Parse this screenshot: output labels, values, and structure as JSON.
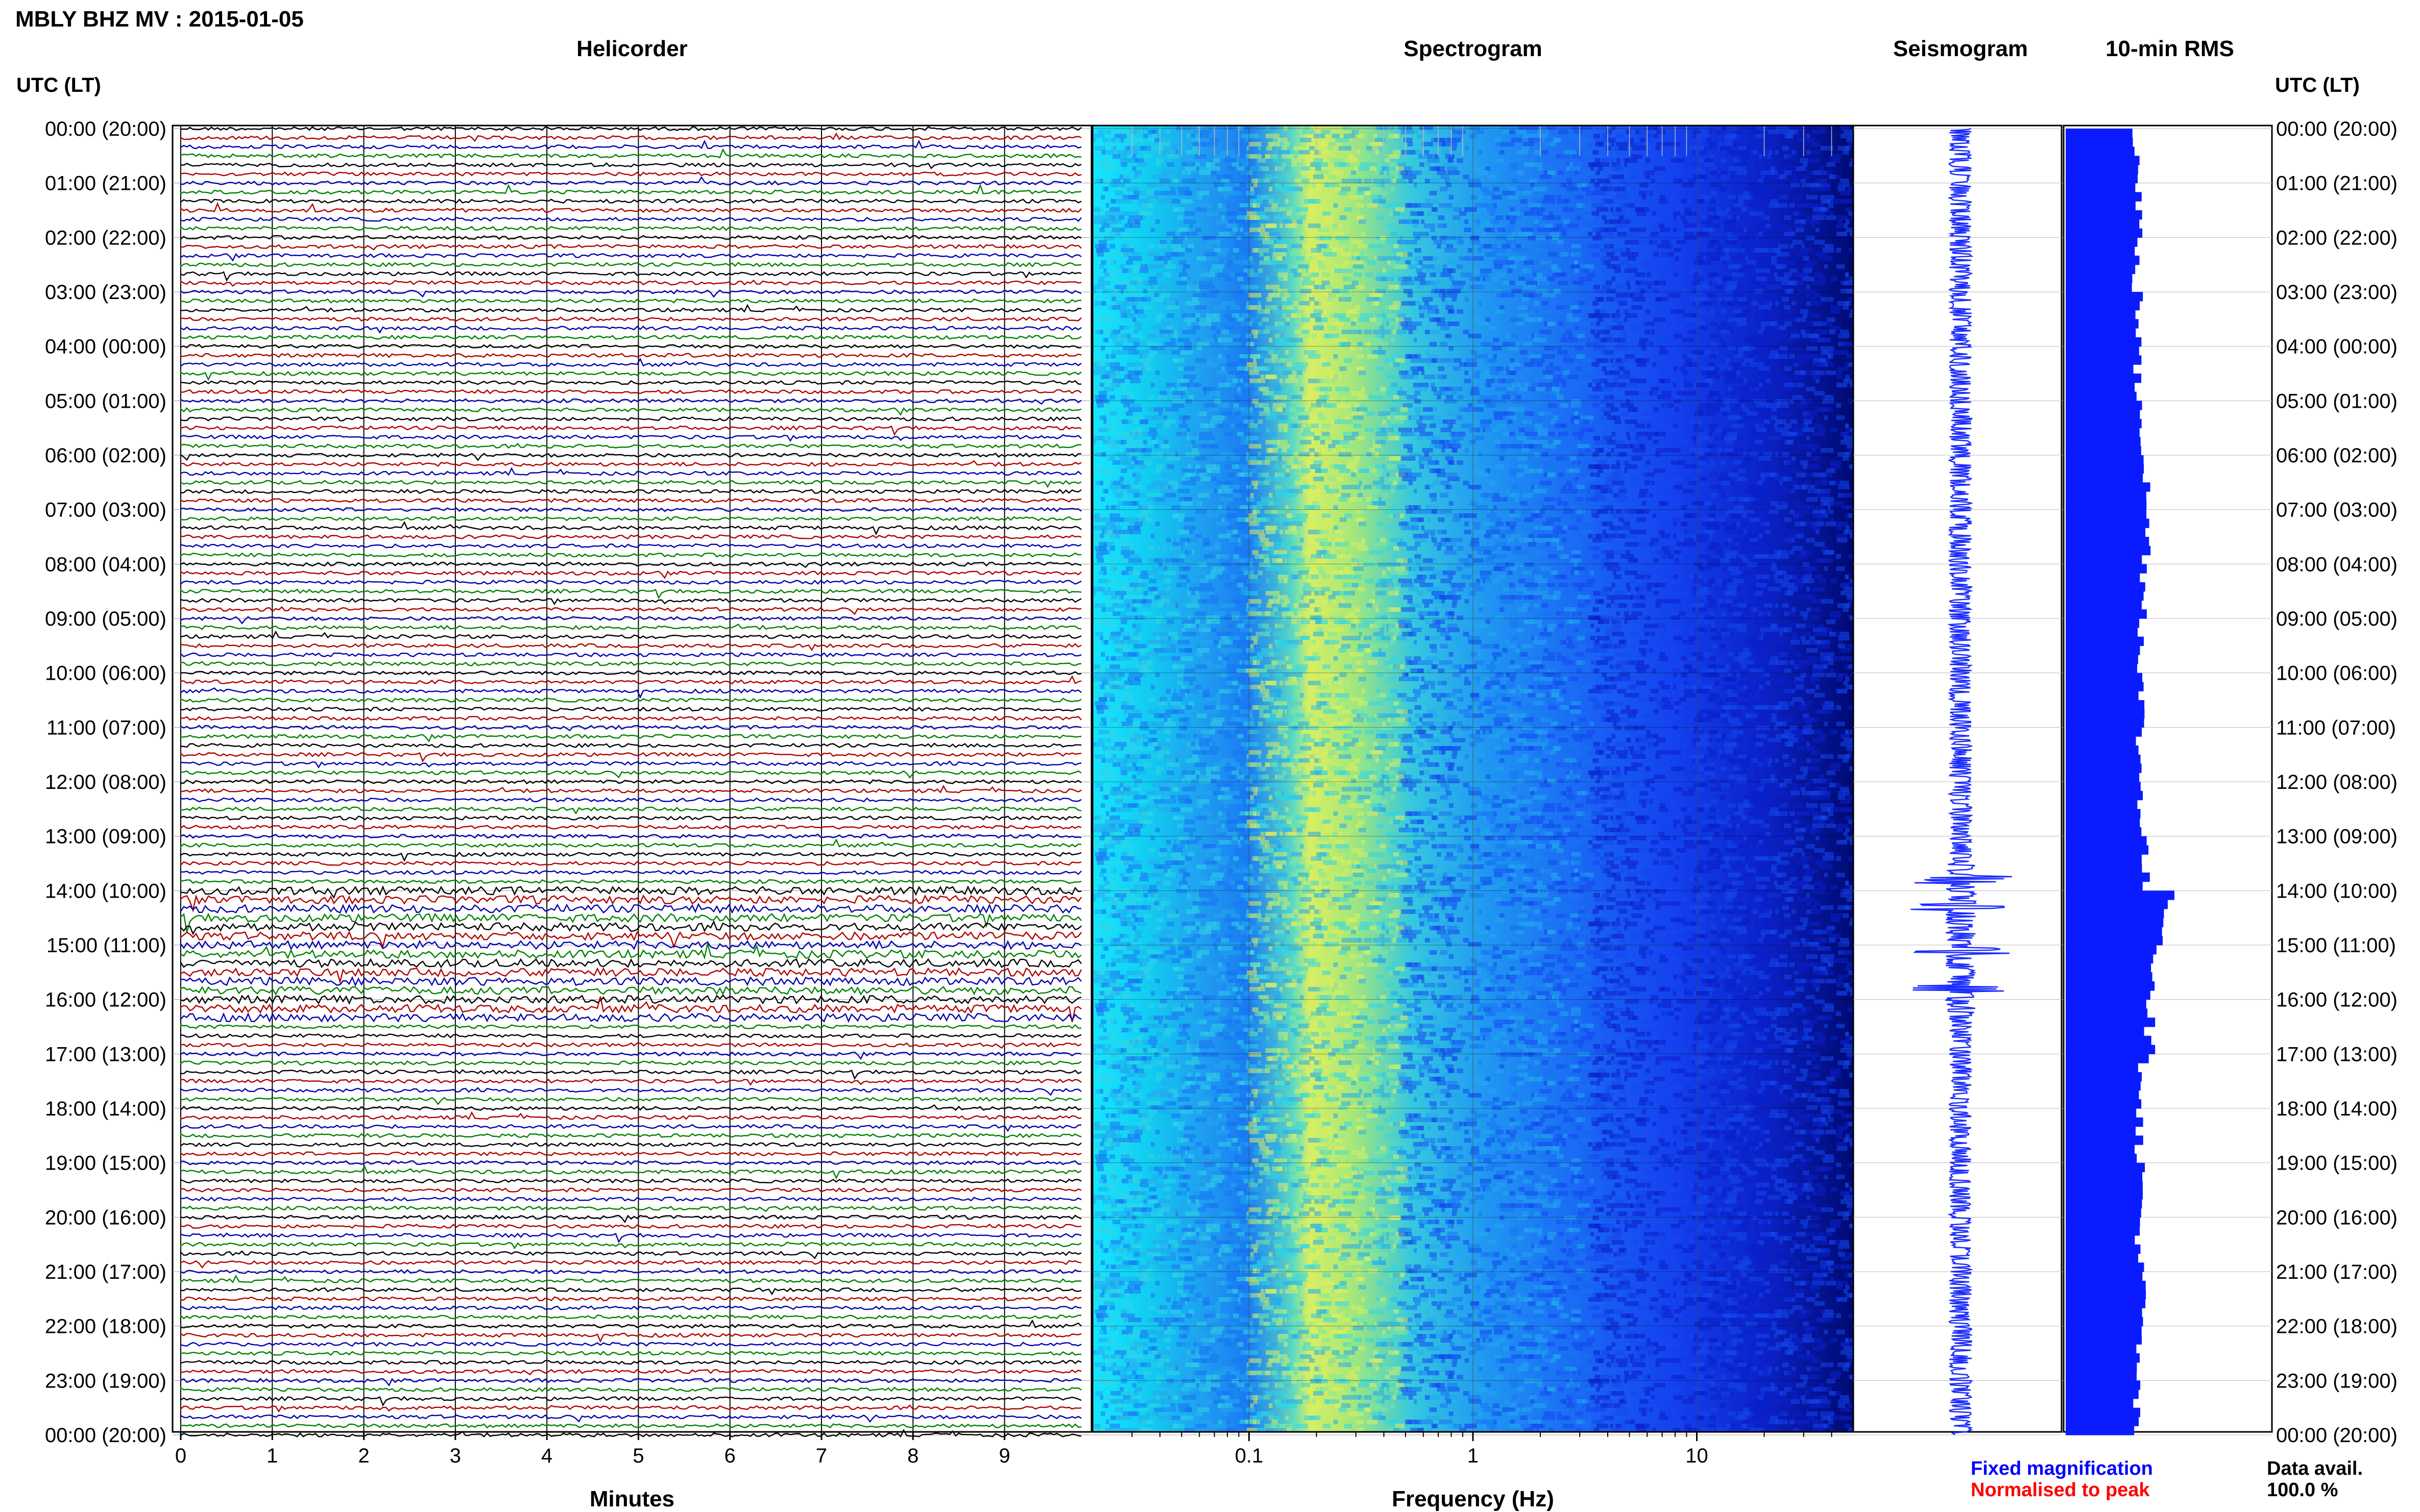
{
  "title": "MBLY BHZ MV : 2015-01-05",
  "panels": {
    "helicorder": "Helicorder",
    "spectrogram": "Spectrogram",
    "seismogram": "Seismogram",
    "rms": "10-min RMS"
  },
  "axis_labels": {
    "utc_lt_left": "UTC (LT)",
    "utc_lt_right": "UTC (LT)",
    "minutes": "Minutes",
    "frequency": "Frequency (Hz)"
  },
  "time_labels": [
    "00:00 (20:00)",
    "01:00 (21:00)",
    "02:00 (22:00)",
    "03:00 (23:00)",
    "04:00 (00:00)",
    "05:00 (01:00)",
    "06:00 (02:00)",
    "07:00 (03:00)",
    "08:00 (04:00)",
    "09:00 (05:00)",
    "10:00 (06:00)",
    "11:00 (07:00)",
    "12:00 (08:00)",
    "13:00 (09:00)",
    "14:00 (10:00)",
    "15:00 (11:00)",
    "16:00 (12:00)",
    "17:00 (13:00)",
    "18:00 (14:00)",
    "19:00 (15:00)",
    "20:00 (16:00)",
    "21:00 (17:00)",
    "22:00 (18:00)",
    "23:00 (19:00)",
    "00:00 (20:00)"
  ],
  "minute_ticks": [
    "0",
    "1",
    "2",
    "3",
    "4",
    "5",
    "6",
    "7",
    "8",
    "9"
  ],
  "freq_ticks": [
    "0.1",
    "1",
    "10"
  ],
  "legend": {
    "fixed": "Fixed magnification",
    "normalised": "Normalised to peak",
    "fixed_color": "#0000ff",
    "normalised_color": "#ff0000"
  },
  "data_avail": {
    "label": "Data avail.",
    "value": "100.0 %"
  },
  "colors": {
    "trace_cycle": [
      "#000000",
      "#b00000",
      "#0000b0",
      "#008000"
    ],
    "seismogram": "#1a2bff",
    "rms": "#0a1cff",
    "spectrogram_low": "#00007a",
    "spectrogram_mid": "#0f6bff",
    "spectrogram_high": "#e8f060"
  },
  "chart_data": [
    {
      "type": "line",
      "name": "helicorder",
      "xlabel": "Minutes",
      "xlim": [
        0,
        10
      ],
      "traces_per_hour": 6,
      "hours": 24,
      "trace_count": 145,
      "ylabel": "UTC (LT)"
    },
    {
      "type": "heatmap",
      "name": "spectrogram",
      "xlabel": "Frequency (Hz)",
      "x_scale": "log",
      "xlim": [
        0.02,
        50
      ],
      "peak_band_hz": [
        0.2,
        0.6
      ]
    },
    {
      "type": "line",
      "name": "seismogram",
      "events_utc_hours": [
        13.8,
        14.3,
        15.1,
        15.8
      ]
    },
    {
      "type": "bar",
      "name": "10-min RMS",
      "orientation": "horizontal",
      "relative_values_by_hour": [
        0.56,
        0.58,
        0.55,
        0.57,
        0.56,
        0.61,
        0.63,
        0.64,
        0.62,
        0.6,
        0.59,
        0.58,
        0.6,
        0.62,
        0.8,
        0.7,
        0.66,
        0.61,
        0.58,
        0.59,
        0.58,
        0.6,
        0.57,
        0.55
      ]
    }
  ]
}
